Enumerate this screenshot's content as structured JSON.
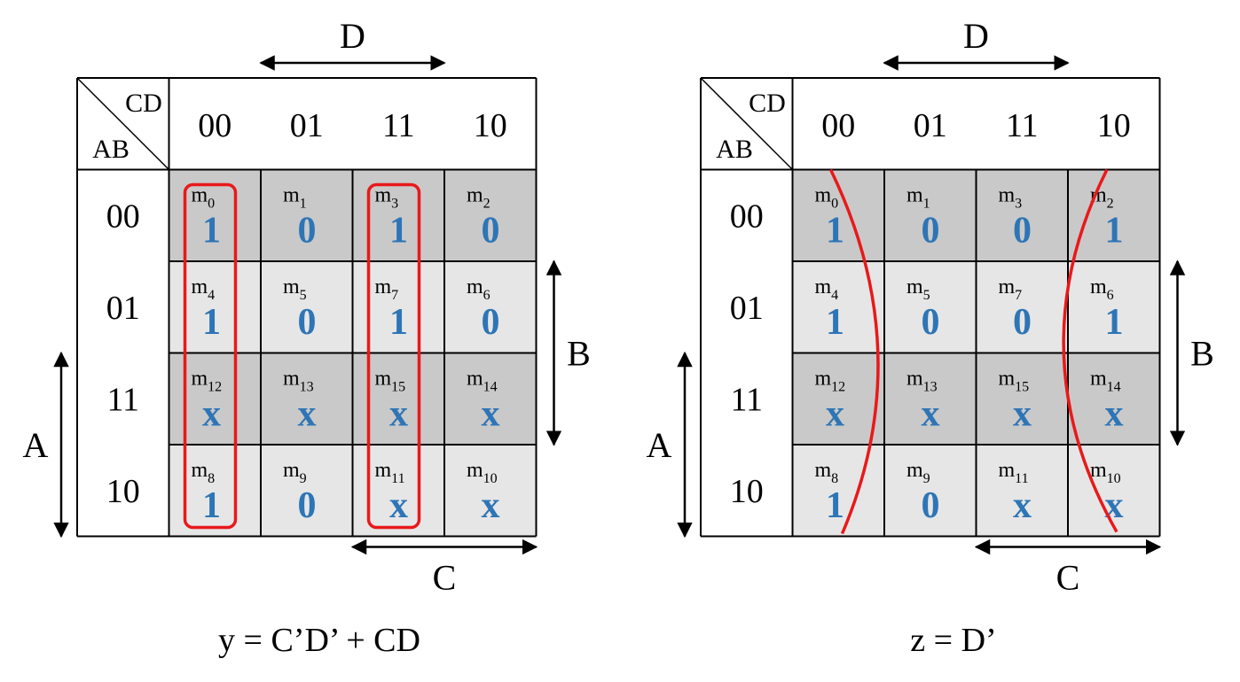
{
  "maps": [
    {
      "corner_top": "CD",
      "corner_bottom": "AB",
      "col_labels": [
        "00",
        "01",
        "11",
        "10"
      ],
      "row_labels": [
        "00",
        "01",
        "11",
        "10"
      ],
      "var_top": "D",
      "var_bottom": "C",
      "var_left": "A",
      "var_right": "B",
      "cells": [
        [
          {
            "m": "m",
            "sub": "0",
            "v": "1"
          },
          {
            "m": "m",
            "sub": "1",
            "v": "0"
          },
          {
            "m": "m",
            "sub": "3",
            "v": "1"
          },
          {
            "m": "m",
            "sub": "2",
            "v": "0"
          }
        ],
        [
          {
            "m": "m",
            "sub": "4",
            "v": "1"
          },
          {
            "m": "m",
            "sub": "5",
            "v": "0"
          },
          {
            "m": "m",
            "sub": "7",
            "v": "1"
          },
          {
            "m": "m",
            "sub": "6",
            "v": "0"
          }
        ],
        [
          {
            "m": "m",
            "sub": "12",
            "v": "x"
          },
          {
            "m": "m",
            "sub": "13",
            "v": "x"
          },
          {
            "m": "m",
            "sub": "15",
            "v": "x"
          },
          {
            "m": "m",
            "sub": "14",
            "v": "x"
          }
        ],
        [
          {
            "m": "m",
            "sub": "8",
            "v": "1"
          },
          {
            "m": "m",
            "sub": "9",
            "v": "0"
          },
          {
            "m": "m",
            "sub": "11",
            "v": "x"
          },
          {
            "m": "m",
            "sub": "10",
            "v": "x"
          }
        ]
      ],
      "equation": "y = C’D’ + CD"
    },
    {
      "corner_top": "CD",
      "corner_bottom": "AB",
      "col_labels": [
        "00",
        "01",
        "11",
        "10"
      ],
      "row_labels": [
        "00",
        "01",
        "11",
        "10"
      ],
      "var_top": "D",
      "var_bottom": "C",
      "var_left": "A",
      "var_right": "B",
      "cells": [
        [
          {
            "m": "m",
            "sub": "0",
            "v": "1"
          },
          {
            "m": "m",
            "sub": "1",
            "v": "0"
          },
          {
            "m": "m",
            "sub": "3",
            "v": "0"
          },
          {
            "m": "m",
            "sub": "2",
            "v": "1"
          }
        ],
        [
          {
            "m": "m",
            "sub": "4",
            "v": "1"
          },
          {
            "m": "m",
            "sub": "5",
            "v": "0"
          },
          {
            "m": "m",
            "sub": "7",
            "v": "0"
          },
          {
            "m": "m",
            "sub": "6",
            "v": "1"
          }
        ],
        [
          {
            "m": "m",
            "sub": "12",
            "v": "x"
          },
          {
            "m": "m",
            "sub": "13",
            "v": "x"
          },
          {
            "m": "m",
            "sub": "15",
            "v": "x"
          },
          {
            "m": "m",
            "sub": "14",
            "v": "x"
          }
        ],
        [
          {
            "m": "m",
            "sub": "8",
            "v": "1"
          },
          {
            "m": "m",
            "sub": "9",
            "v": "0"
          },
          {
            "m": "m",
            "sub": "11",
            "v": "x"
          },
          {
            "m": "m",
            "sub": "10",
            "v": "x"
          }
        ]
      ],
      "equation": "z = D’"
    }
  ],
  "colors": {
    "row_dark": "#c9c9c9",
    "row_light": "#e6e6e6",
    "value": "#2e75b6",
    "group": "#e8191b"
  }
}
